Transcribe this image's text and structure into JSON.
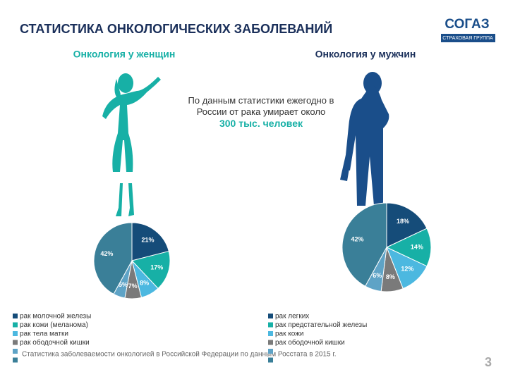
{
  "header": {
    "title": "СТАТИСТИКА ОНКОЛОГИЧЕСКИХ ЗАБОЛЕВАНИЙ",
    "logo": "СОГАЗ",
    "logo_sub": "СТРАХОВАЯ ГРУППА"
  },
  "note": {
    "text": "По данным статистики ежегодно в России от рака умирает около",
    "highlight": "300 тыс. человек"
  },
  "footnote": "Статистика заболеваемости онкологией в Российской Федерации по данным Росстата в 2015 г.",
  "page_number": "3",
  "chart_data": [
    {
      "type": "pie",
      "title": "Онкология у женщин",
      "categories": [
        "рак молочной железы",
        "рак кожи (меланома)",
        "рак тела матки",
        "рак ободочной кишки",
        null,
        null
      ],
      "values": [
        21,
        17,
        8,
        7,
        5,
        42
      ],
      "value_labels": [
        "21%",
        "17%",
        "8%",
        "7%",
        "5%",
        "42%"
      ],
      "colors": [
        "#154c79",
        "#17b0a6",
        "#4cb8e0",
        "#7a7a7a",
        "#5ea3c6",
        "#3a7f98"
      ]
    },
    {
      "type": "pie",
      "title": "Онкология у мужчин",
      "categories": [
        "рак легких",
        "рак предстательной железы",
        "рак кожи",
        "рак ободочной кишки",
        null,
        null
      ],
      "values": [
        18,
        14,
        12,
        8,
        6,
        42
      ],
      "value_labels": [
        "18%",
        "14%",
        "12%",
        "8%",
        "6%",
        "42%"
      ],
      "colors": [
        "#154c79",
        "#17b0a6",
        "#4cb8e0",
        "#7a7a7a",
        "#5ea3c6",
        "#3a7f98"
      ]
    }
  ]
}
